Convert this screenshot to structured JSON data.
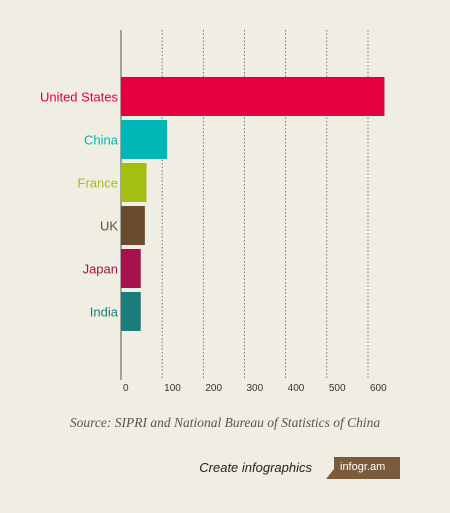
{
  "chart_data": {
    "type": "bar",
    "orientation": "horizontal",
    "categories": [
      "United States",
      "China",
      "France",
      "UK",
      "Japan",
      "India"
    ],
    "values": [
      640,
      112,
      62,
      58,
      48,
      48
    ],
    "colors": [
      "#e4003e",
      "#00b7b7",
      "#a3c010",
      "#694c2e",
      "#a8104c",
      "#1a7d7b"
    ],
    "xlim": [
      0,
      650
    ],
    "ticks": [
      "0",
      "100",
      "200",
      "300",
      "400",
      "500",
      "600"
    ],
    "grid": true
  },
  "source": "Source: SIPRI and National Bureau of Statistics of China",
  "footer": {
    "create_label": "Create infographics",
    "brand": "infogr.am",
    "brand_color": "#7a5c3c"
  }
}
